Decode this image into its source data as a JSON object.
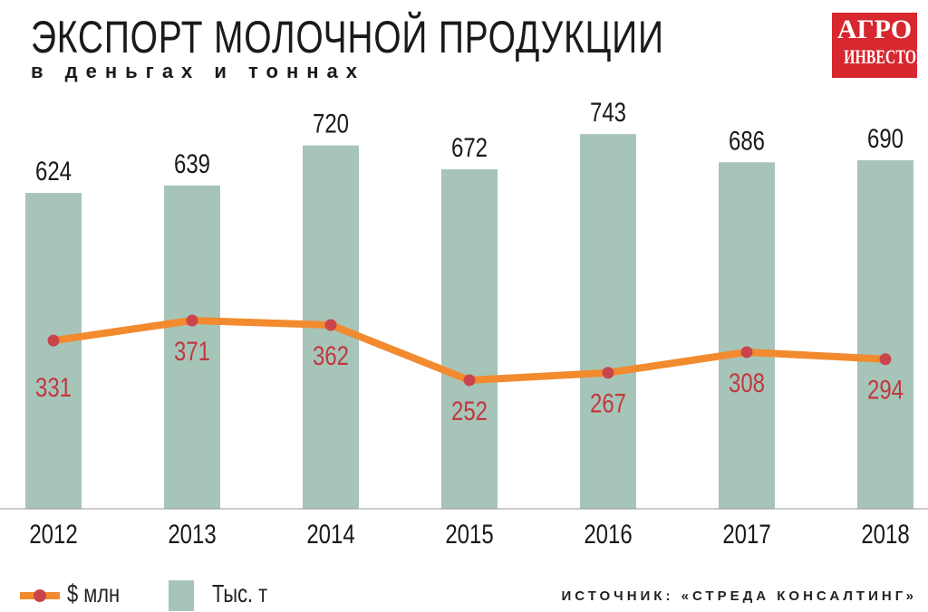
{
  "header": {
    "title": "ЭКСПОРТ МОЛОЧНОЙ ПРОДУКЦИИ",
    "subtitle": "в деньгах и тоннах",
    "logo_text": [
      "АГРО",
      "ИНВЕСТОР"
    ]
  },
  "chart_data": {
    "type": "bar",
    "categories": [
      "2012",
      "2013",
      "2014",
      "2015",
      "2016",
      "2017",
      "2018"
    ],
    "series": [
      {
        "name": "Тыс. т",
        "type": "bar",
        "values": [
          624,
          639,
          720,
          672,
          743,
          686,
          690
        ],
        "color": "#a7c4b9"
      },
      {
        "name": "$ млн",
        "type": "line",
        "values": [
          331,
          371,
          362,
          252,
          267,
          308,
          294
        ],
        "color": "#f28a2e",
        "marker_color": "#c9454b",
        "label_color": "#c0393e"
      }
    ],
    "legend_position": "bottom-left",
    "grid": false
  },
  "legend": {
    "line_label": "$ млн",
    "bar_label": "Тыс. т"
  },
  "source": "ИСТОЧНИК: «СТРЕДА КОНСАЛТИНГ»"
}
